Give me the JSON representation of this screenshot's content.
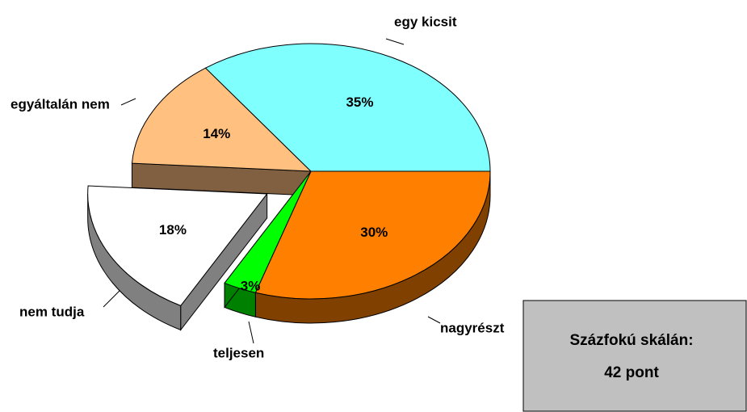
{
  "chart_data": {
    "type": "pie",
    "categories": [
      "nagyrészt",
      "teljesen",
      "nem tudja",
      "egyáltalán nem",
      "egy kicsit"
    ],
    "values": [
      30,
      3,
      18,
      14,
      35
    ],
    "value_labels": [
      "30%",
      "3%",
      "18%",
      "14%",
      "35%"
    ],
    "colors": [
      "#ff8000",
      "#00ff00",
      "#ffffff",
      "#ffc080",
      "#80ffff"
    ],
    "side_colors": [
      "#804000",
      "#008000",
      "#808080",
      "#806040",
      "#408080"
    ],
    "explode": [
      false,
      false,
      true,
      false,
      false
    ],
    "annotation": [
      "Százfokú skálán:",
      "42 pont"
    ]
  }
}
